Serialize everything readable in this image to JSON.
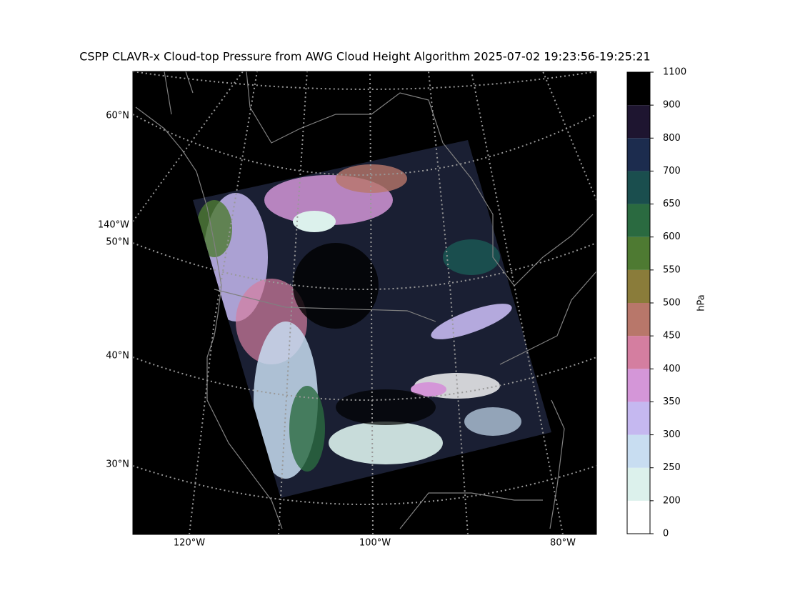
{
  "title": "CSPP CLAVR-x Cloud-top Pressure from AWG Cloud Height Algorithm 2025-07-02 19:23:56-19:25:21",
  "map": {
    "lat_labels": [
      "60°N",
      "50°N",
      "40°N",
      "30°N"
    ],
    "lon_left_label": "140°W",
    "lon_labels": [
      "120°W",
      "100°W",
      "80°W"
    ]
  },
  "colorbar": {
    "label": "hPa",
    "ticks": [
      0,
      200,
      250,
      300,
      350,
      400,
      450,
      500,
      550,
      600,
      650,
      700,
      800,
      900,
      1100
    ],
    "colors": [
      "#ffffff",
      "#dcf1ec",
      "#c8ddf1",
      "#c5b8f0",
      "#d496d8",
      "#d47ea0",
      "#b8776a",
      "#8a7c3a",
      "#4e7a32",
      "#2a6a40",
      "#1a4e4e",
      "#1c2c4e",
      "#1e1530",
      "#000000"
    ]
  }
}
